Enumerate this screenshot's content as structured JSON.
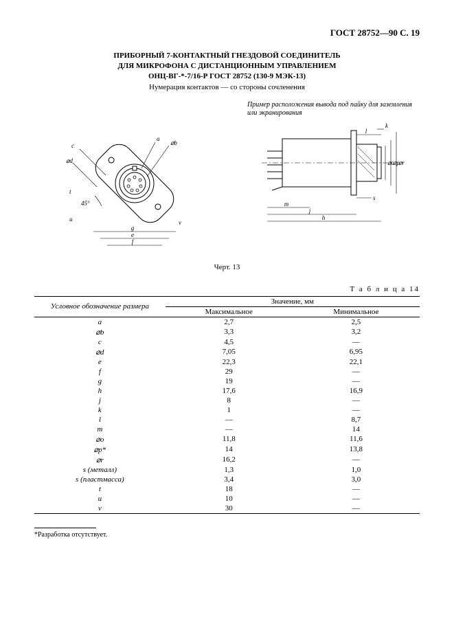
{
  "doc_id": "ГОСТ 28752—90 С. 19",
  "heading_lines": [
    "ПРИБОРНЫЙ 7-КОНТАКТНЫЙ ГНЕЗДОВОЙ СОЕДИНИТЕЛЬ",
    "ДЛЯ МИКРОФОНА С ДИСТАНЦИОННЫМ УПРАВЛЕНИЕМ",
    "ОНЦ-ВГ-*-7/16-Р ГОСТ 28752 (130-9 МЭК-13)"
  ],
  "subtitle": "Нумерация контактов — со стороны сочленения",
  "figure_note": "Пример расположения вывода под пайку для заземления или экранирования",
  "figure_label": "Черт.  13",
  "table_label": "Т а б л и ц а  14",
  "table": {
    "col1_header": "Условное обозначение размера",
    "group_header": "Значение, мм",
    "max_header": "Максимальное",
    "min_header": "Минимальное",
    "rows": [
      {
        "sym": "a",
        "max": "2,7",
        "min": "2,5"
      },
      {
        "sym": "⌀b",
        "max": "3,3",
        "min": "3,2"
      },
      {
        "sym": "c",
        "max": "4,5",
        "min": "—"
      },
      {
        "sym": "⌀d",
        "max": "7,05",
        "min": "6,95"
      },
      {
        "sym": "e",
        "max": "22,3",
        "min": "22,1"
      },
      {
        "sym": "f",
        "max": "29",
        "min": "—"
      },
      {
        "sym": "g",
        "max": "19",
        "min": "—"
      },
      {
        "sym": "h",
        "max": "17,6",
        "min": "16,9"
      },
      {
        "sym": "j",
        "max": "8",
        "min": "—"
      },
      {
        "sym": "k",
        "max": "1",
        "min": "—"
      },
      {
        "sym": "l",
        "max": "—",
        "min": "8,7"
      },
      {
        "sym": "m",
        "max": "—",
        "min": "14"
      },
      {
        "sym": "⌀o",
        "max": "11,8",
        "min": "11,6"
      },
      {
        "sym": "⌀p*",
        "max": "14",
        "min": "13,8"
      },
      {
        "sym": "⌀r",
        "max": "16,2",
        "min": "—"
      },
      {
        "sym": "s (металл)",
        "max": "1,3",
        "min": "1,0"
      },
      {
        "sym": "s (пластмасса)",
        "max": "3,4",
        "min": "3,0"
      },
      {
        "sym": "t",
        "max": "18",
        "min": "—"
      },
      {
        "sym": "u",
        "max": "10",
        "min": "—"
      },
      {
        "sym": "v",
        "max": "30",
        "min": "—"
      }
    ]
  },
  "footnote": "*Разработка отсутствует.",
  "drawing": {
    "front": {
      "dim_labels": [
        "a",
        "⌀b",
        "c",
        "⌀d",
        "e",
        "f",
        "g",
        "t",
        "u",
        "v",
        "45°"
      ],
      "num_pins": 7
    },
    "side": {
      "dim_labels": [
        "l",
        "k",
        "⌀o",
        "⌀p",
        "⌀r",
        "s",
        "m",
        "j",
        "h"
      ]
    },
    "stroke": "#000000",
    "stroke_width": 1,
    "thin_width": 0.6,
    "font_size_dim": 9
  }
}
